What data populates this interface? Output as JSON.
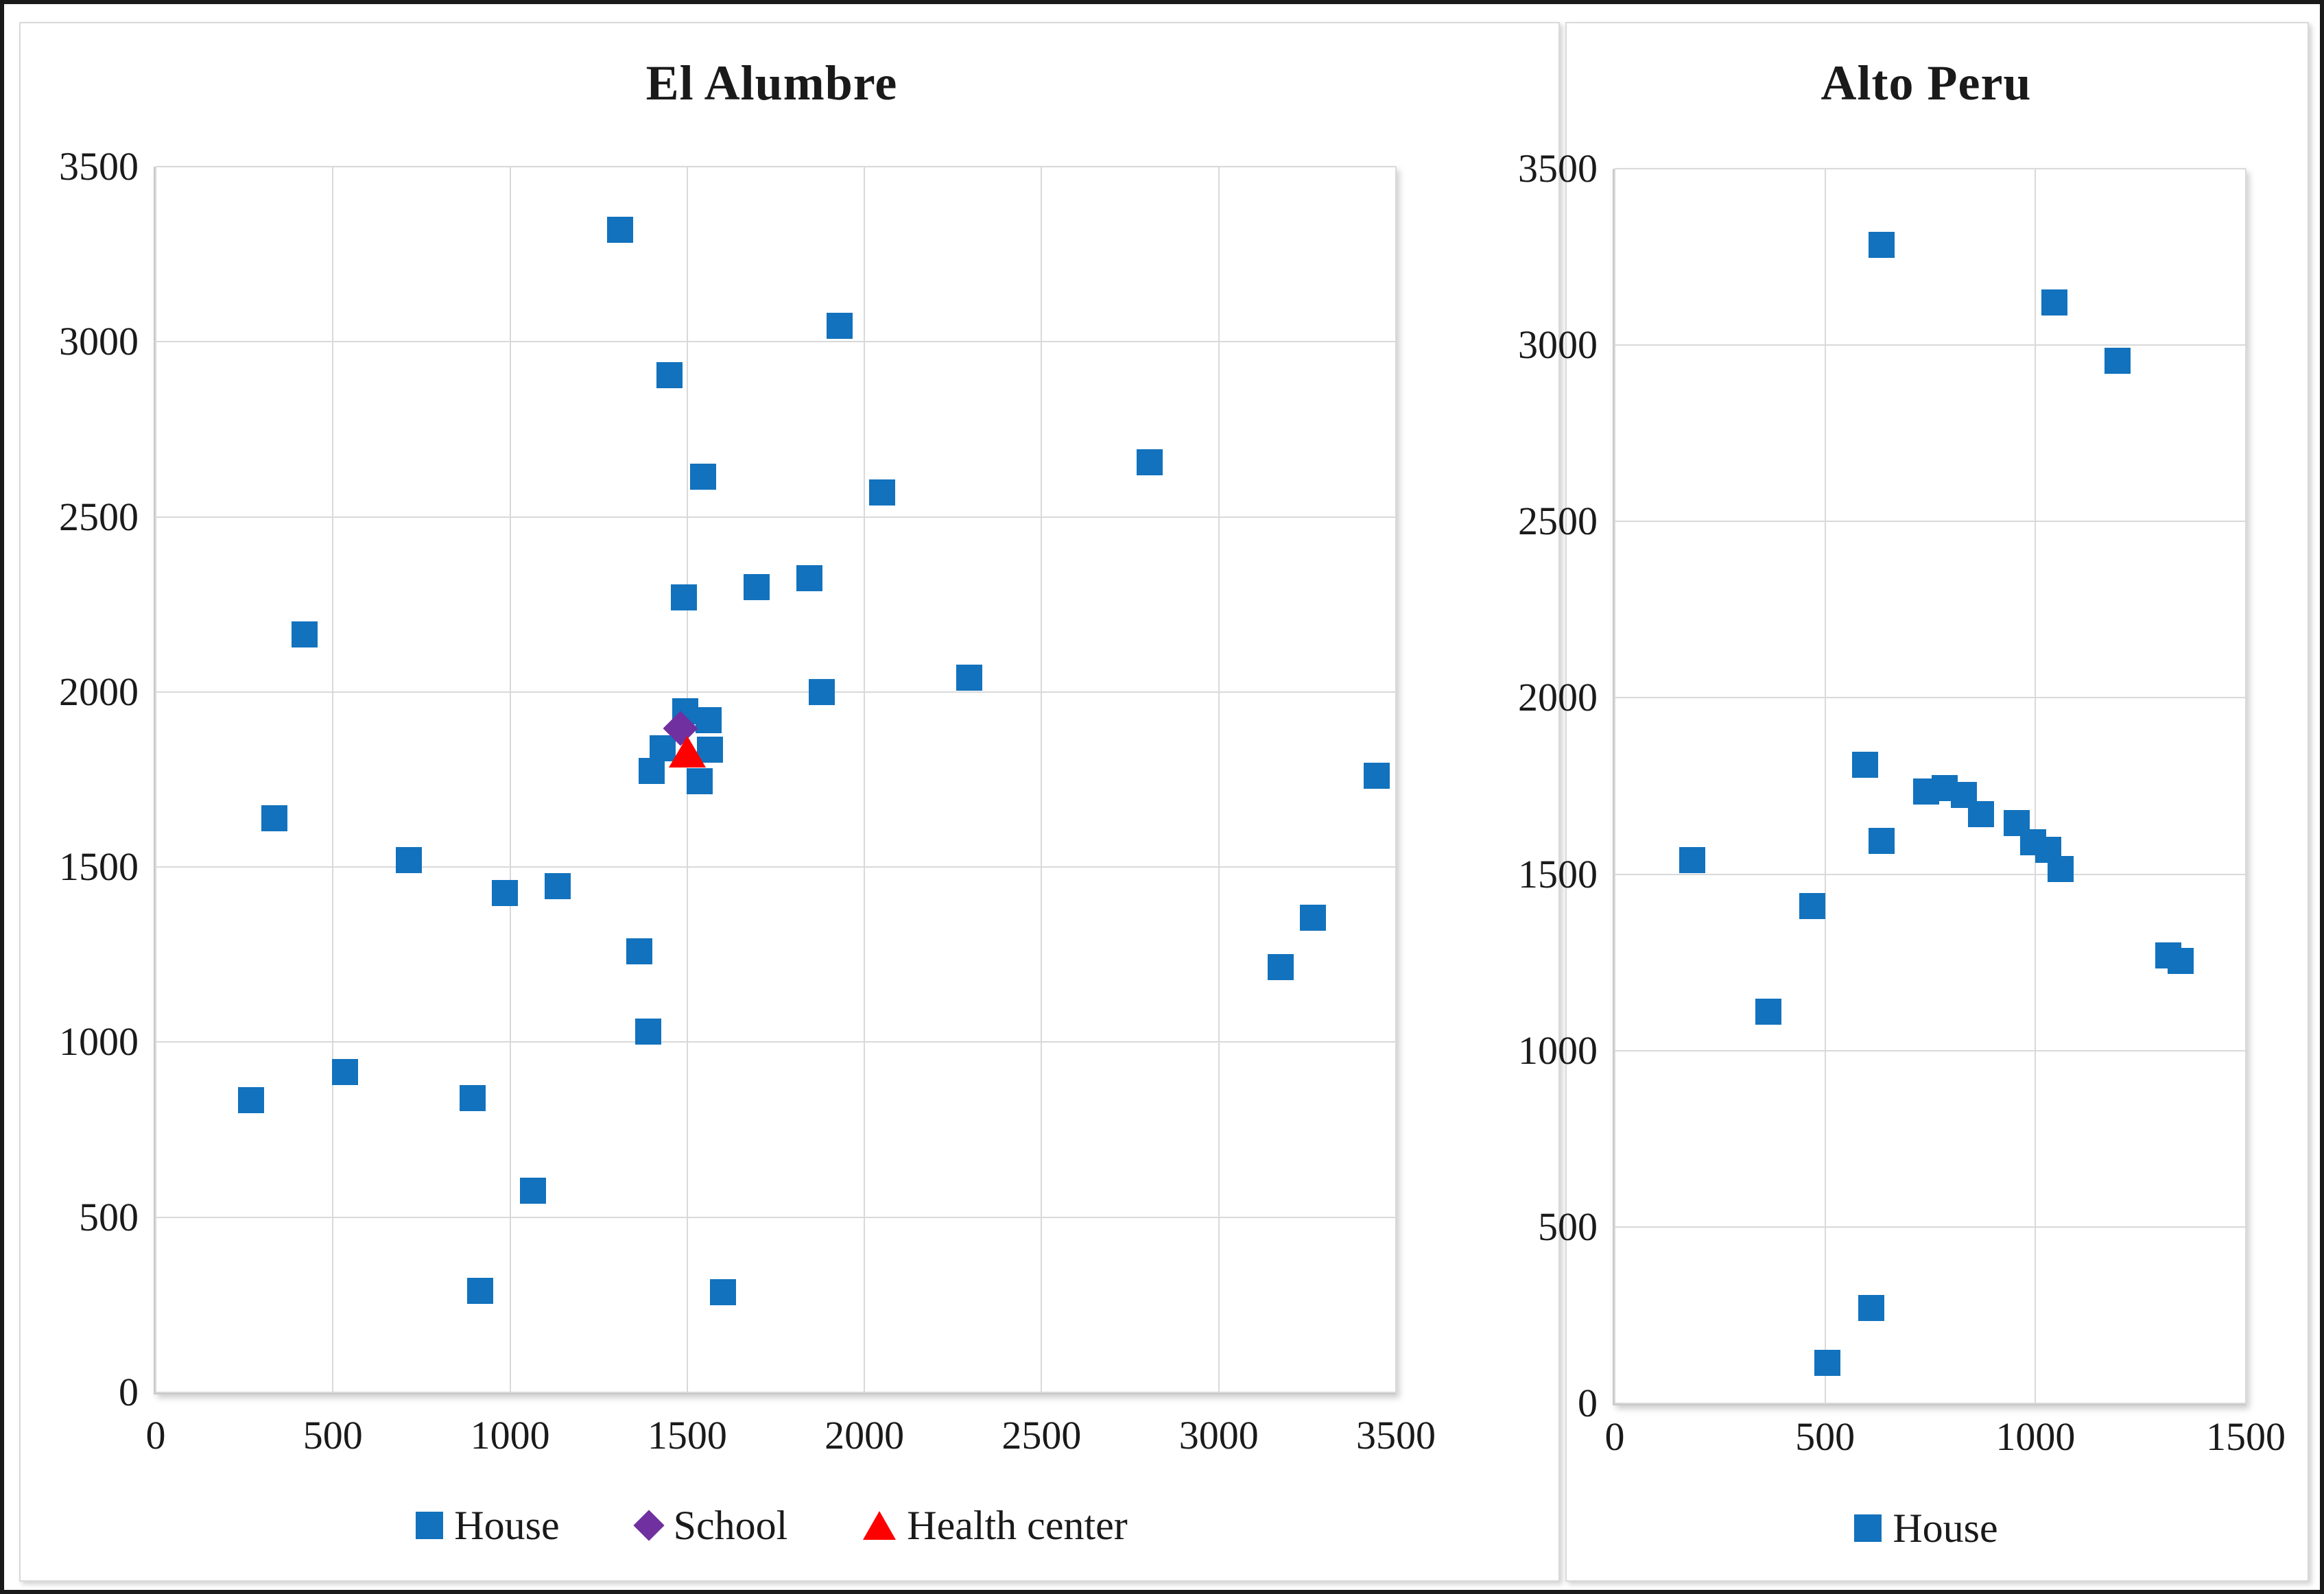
{
  "figure": {
    "background": "#FFFFFF",
    "outer_border_color": "#1A1A1A",
    "panel_border_color": "#D9D9D9",
    "text_color": "#1A1A1A"
  },
  "chart_data": [
    {
      "type": "scatter",
      "title": "El Alumbre",
      "xlabel": "",
      "ylabel": "",
      "xlim": [
        0,
        3500
      ],
      "ylim": [
        0,
        3500
      ],
      "xticks": [
        0,
        500,
        1000,
        1500,
        2000,
        2500,
        3000,
        3500
      ],
      "yticks": [
        0,
        500,
        1000,
        1500,
        2000,
        2500,
        3000,
        3500
      ],
      "grid": true,
      "gridline_color": "#D9D9D9",
      "legend_position": "bottom",
      "series": [
        {
          "name": "House",
          "marker": "square",
          "color": "#1272BD",
          "points": [
            [
              270,
              835
            ],
            [
              335,
              1640
            ],
            [
              420,
              2165
            ],
            [
              535,
              915
            ],
            [
              715,
              1520
            ],
            [
              895,
              840
            ],
            [
              915,
              290
            ],
            [
              985,
              1425
            ],
            [
              1065,
              575
            ],
            [
              1135,
              1445
            ],
            [
              1310,
              3320
            ],
            [
              1365,
              1260
            ],
            [
              1390,
              1030
            ],
            [
              1400,
              1775
            ],
            [
              1430,
              1840
            ],
            [
              1450,
              2905
            ],
            [
              1490,
              2270
            ],
            [
              1495,
              1945
            ],
            [
              1535,
              1745
            ],
            [
              1545,
              2615
            ],
            [
              1560,
              1920
            ],
            [
              1565,
              1835
            ],
            [
              1600,
              285
            ],
            [
              1695,
              2300
            ],
            [
              1845,
              2325
            ],
            [
              1880,
              2000
            ],
            [
              1930,
              3045
            ],
            [
              2050,
              2570
            ],
            [
              2295,
              2040
            ],
            [
              2805,
              2655
            ],
            [
              3175,
              1215
            ],
            [
              3265,
              1355
            ],
            [
              3445,
              1760
            ]
          ]
        },
        {
          "name": "School",
          "marker": "diamond",
          "color": "#7030A0",
          "points": [
            [
              1480,
              1895
            ]
          ]
        },
        {
          "name": "Health center",
          "marker": "triangle",
          "color": "#FF0000",
          "points": [
            [
              1500,
              1825
            ]
          ]
        }
      ]
    },
    {
      "type": "scatter",
      "title": "Alto Peru",
      "xlabel": "",
      "ylabel": "",
      "xlim": [
        0,
        1500
      ],
      "ylim": [
        0,
        3500
      ],
      "xticks": [
        0,
        500,
        1000,
        1500
      ],
      "yticks": [
        0,
        500,
        1000,
        1500,
        2000,
        2500,
        3000,
        3500
      ],
      "grid": true,
      "gridline_color": "#D9D9D9",
      "legend_position": "bottom",
      "series": [
        {
          "name": "House",
          "marker": "square",
          "color": "#1272BD",
          "points": [
            [
              185,
              1540
            ],
            [
              365,
              1110
            ],
            [
              470,
              1410
            ],
            [
              505,
              115
            ],
            [
              595,
              1810
            ],
            [
              610,
              270
            ],
            [
              635,
              1595
            ],
            [
              635,
              3285
            ],
            [
              740,
              1735
            ],
            [
              785,
              1745
            ],
            [
              830,
              1725
            ],
            [
              870,
              1670
            ],
            [
              955,
              1645
            ],
            [
              995,
              1590
            ],
            [
              1030,
              1570
            ],
            [
              1045,
              3120
            ],
            [
              1060,
              1515
            ],
            [
              1195,
              2955
            ],
            [
              1315,
              1270
            ],
            [
              1345,
              1255
            ]
          ]
        }
      ]
    }
  ]
}
